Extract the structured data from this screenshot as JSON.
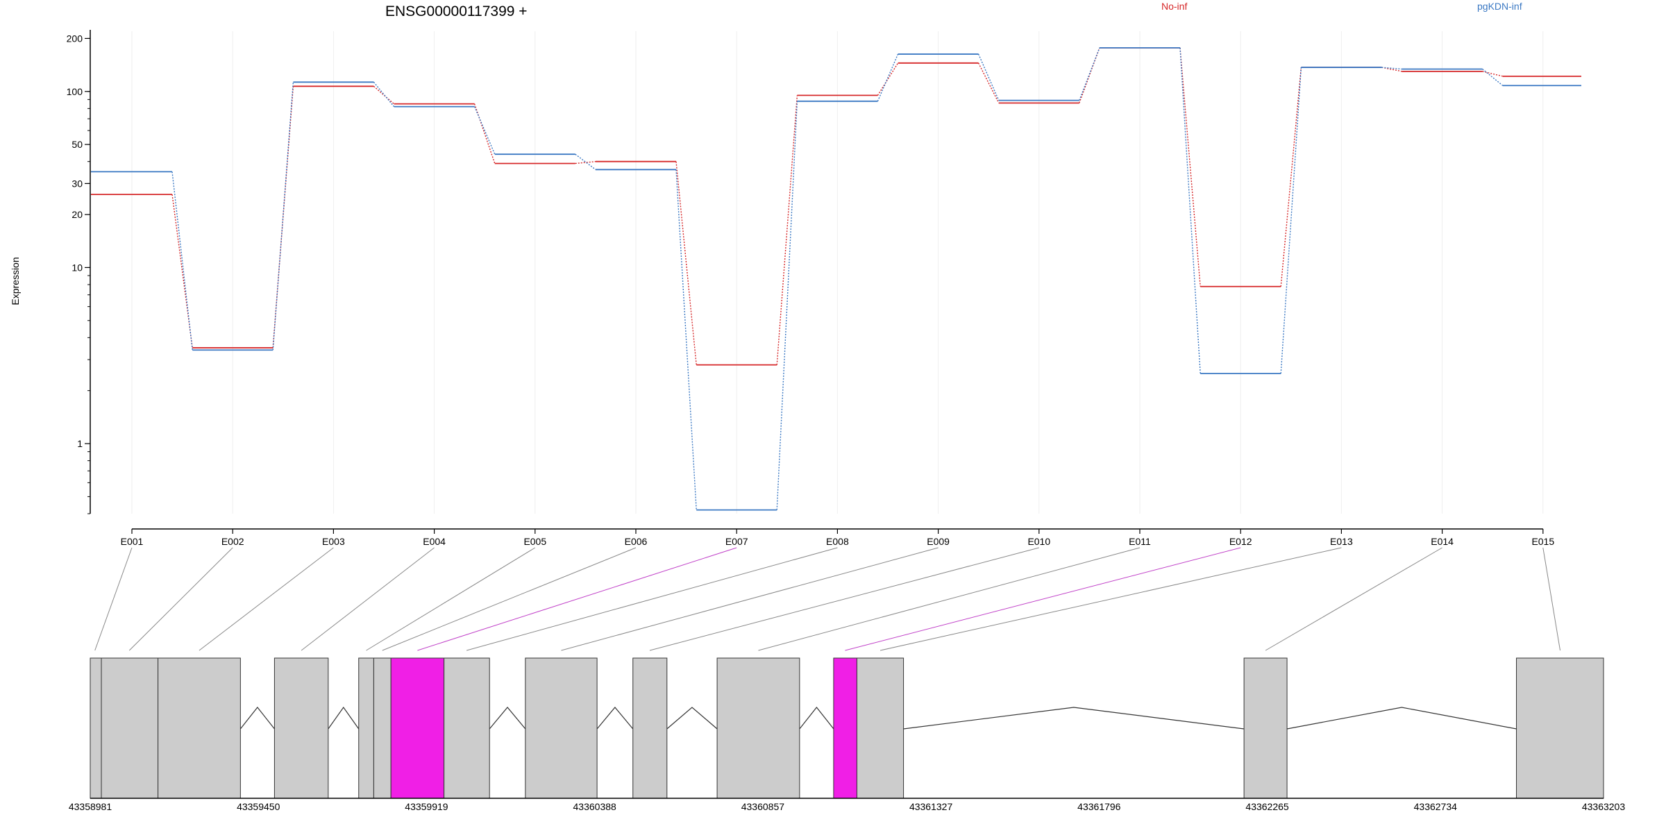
{
  "chart_data": {
    "type": "line",
    "title": "ENSG00000117399 +",
    "ylabel": "Expression",
    "yscale": "log",
    "ylim": [
      0.4,
      230
    ],
    "yticks": [
      1,
      10,
      20,
      30,
      50,
      100,
      200
    ],
    "grid": true,
    "legend_position": "top-right",
    "categories": [
      "E001",
      "E002",
      "E003",
      "E004",
      "E005",
      "E006",
      "E007",
      "E008",
      "E009",
      "E010",
      "E011",
      "E012",
      "E013",
      "E014",
      "E015"
    ],
    "series": [
      {
        "name": "No-inf",
        "color": "#d62728",
        "values": [
          26,
          3.5,
          107,
          85,
          39,
          40,
          2.8,
          95,
          145,
          86,
          177,
          7.8,
          137,
          130,
          122
        ]
      },
      {
        "name": "pgKDN-inf",
        "color": "#3a78c3",
        "values": [
          35,
          3.4,
          113,
          82,
          44,
          36,
          0.42,
          88,
          163,
          89,
          177,
          2.5,
          137,
          134,
          108
        ]
      }
    ],
    "gene_model": {
      "coordinates": [
        "43358981",
        "43359450",
        "43359919",
        "43360388",
        "43360857",
        "43361327",
        "43361796",
        "43362265",
        "43362734",
        "43363203"
      ],
      "start": 43358981,
      "end": 43363203,
      "exon_color": "#cccccc",
      "highlight_color": "#f01fe6",
      "exons": [
        {
          "start": 43358981,
          "end": 43359012,
          "highlight": false
        },
        {
          "start": 43359012,
          "end": 43359170,
          "highlight": false
        },
        {
          "start": 43359170,
          "end": 43359400,
          "highlight": false
        },
        {
          "start": 43359495,
          "end": 43359645,
          "highlight": false
        },
        {
          "start": 43359730,
          "end": 43359772,
          "highlight": false
        },
        {
          "start": 43359772,
          "end": 43359820,
          "highlight": false
        },
        {
          "start": 43359820,
          "end": 43359968,
          "highlight": true
        },
        {
          "start": 43359968,
          "end": 43360095,
          "highlight": false
        },
        {
          "start": 43360195,
          "end": 43360395,
          "highlight": false
        },
        {
          "start": 43360495,
          "end": 43360590,
          "highlight": false
        },
        {
          "start": 43360730,
          "end": 43360960,
          "highlight": false
        },
        {
          "start": 43361055,
          "end": 43361120,
          "highlight": true
        },
        {
          "start": 43361120,
          "end": 43361250,
          "highlight": false
        },
        {
          "start": 43362200,
          "end": 43362320,
          "highlight": false
        },
        {
          "start": 43362960,
          "end": 43363203,
          "highlight": false
        }
      ],
      "links": [
        {
          "pos": 43358994,
          "highlight": false
        },
        {
          "pos": 43359090,
          "highlight": false
        },
        {
          "pos": 43359285,
          "highlight": false
        },
        {
          "pos": 43359570,
          "highlight": false
        },
        {
          "pos": 43359751,
          "highlight": false
        },
        {
          "pos": 43359796,
          "highlight": false
        },
        {
          "pos": 43359894,
          "highlight": true
        },
        {
          "pos": 43360031,
          "highlight": false
        },
        {
          "pos": 43360295,
          "highlight": false
        },
        {
          "pos": 43360542,
          "highlight": false
        },
        {
          "pos": 43360845,
          "highlight": false
        },
        {
          "pos": 43361087,
          "highlight": true
        },
        {
          "pos": 43361185,
          "highlight": false
        },
        {
          "pos": 43362260,
          "highlight": false
        },
        {
          "pos": 43363082,
          "highlight": false
        }
      ]
    }
  }
}
